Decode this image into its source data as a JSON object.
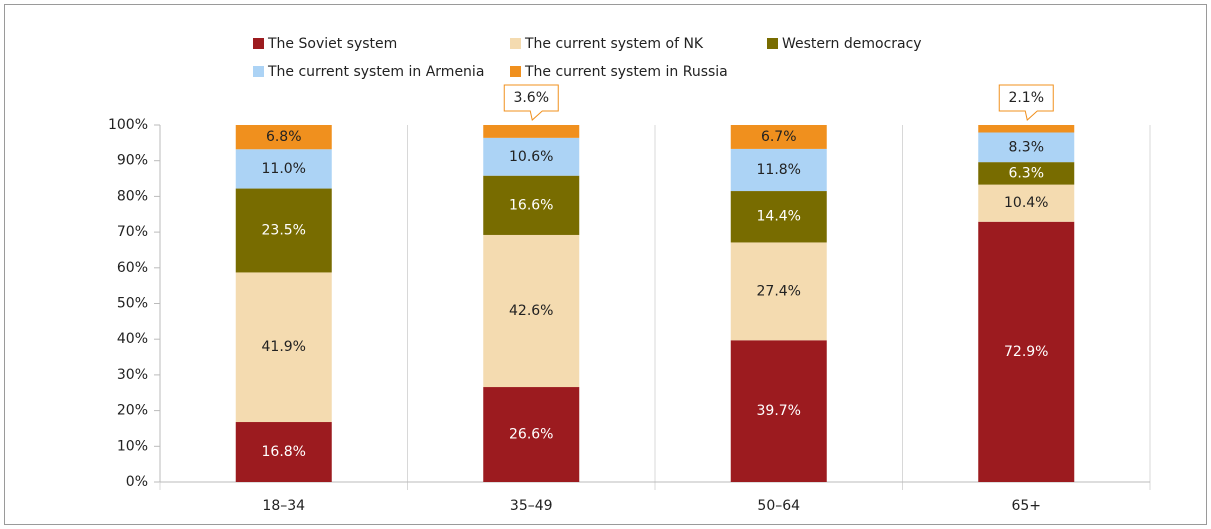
{
  "chart_data": {
    "type": "stacked_bar",
    "categories": [
      "18–34",
      "35–49",
      "50–64",
      "65+"
    ],
    "series": [
      {
        "name": "The Soviet system",
        "color": "#9c1b1f",
        "values": [
          16.8,
          26.6,
          39.7,
          72.9
        ],
        "value_labels": [
          "16.8%",
          "26.6%",
          "39.7%",
          "72.9%"
        ]
      },
      {
        "name": "The current system of NK",
        "color": "#f4dbb0",
        "values": [
          41.9,
          42.6,
          27.4,
          10.4
        ],
        "value_labels": [
          "41.9%",
          "42.6%",
          "27.4%",
          "10.4%"
        ]
      },
      {
        "name": "Western democracy",
        "color": "#786c00",
        "values": [
          23.5,
          16.6,
          14.4,
          6.3
        ],
        "value_labels": [
          "23.5%",
          "16.6%",
          "14.4%",
          "6.3%"
        ]
      },
      {
        "name": "The current system in Armenia",
        "color": "#acd3f5",
        "values": [
          11.0,
          10.6,
          11.8,
          8.3
        ],
        "value_labels": [
          "11.0%",
          "10.6%",
          "11.8%",
          "8.3%"
        ]
      },
      {
        "name": "The current system in Russia",
        "color": "#f0901e",
        "values": [
          6.8,
          3.6,
          6.7,
          2.1
        ],
        "value_labels": [
          "6.8%",
          "3.6%",
          "6.7%",
          "2.1%"
        ]
      }
    ],
    "ylim": [
      0,
      100
    ],
    "yticks": [
      {
        "value": 0,
        "label": "0%"
      },
      {
        "value": 10,
        "label": "10%"
      },
      {
        "value": 20,
        "label": "20%"
      },
      {
        "value": 30,
        "label": "30%"
      },
      {
        "value": 40,
        "label": "40%"
      },
      {
        "value": 50,
        "label": "50%"
      },
      {
        "value": 60,
        "label": "60%"
      },
      {
        "value": 70,
        "label": "70%"
      },
      {
        "value": 80,
        "label": "80%"
      },
      {
        "value": 90,
        "label": "90%"
      },
      {
        "value": 100,
        "label": "100%"
      }
    ]
  }
}
